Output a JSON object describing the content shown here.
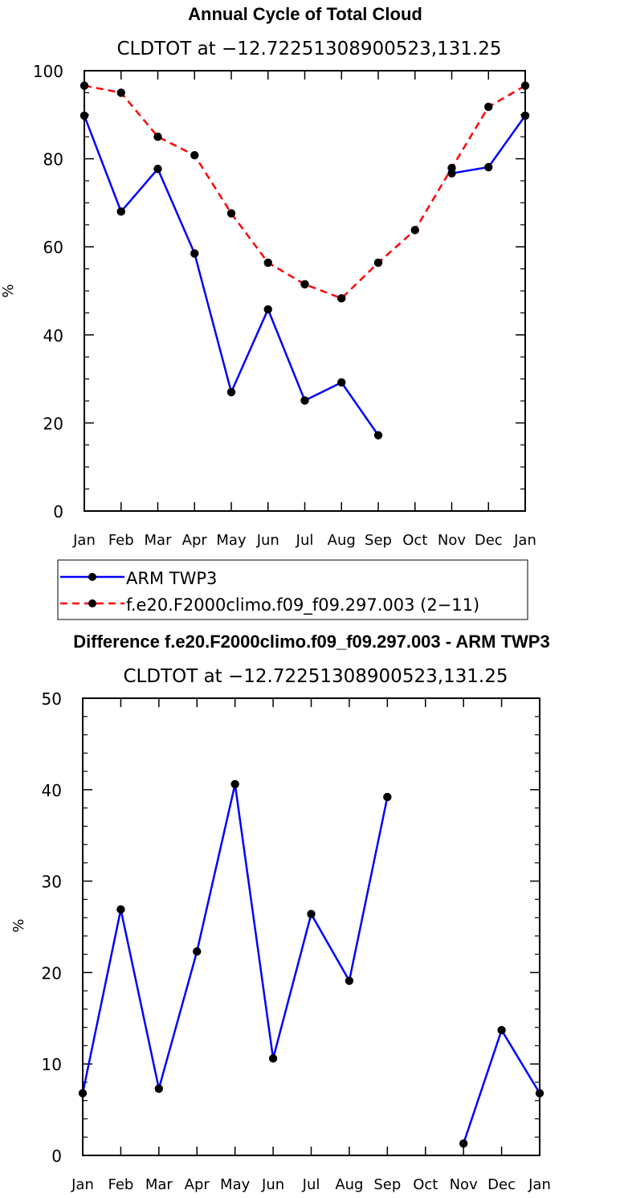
{
  "chart_data": [
    {
      "type": "line",
      "title": "Annual Cycle of Total Cloud",
      "subtitle": "CLDTOT at −12.72251308900523,131.25",
      "ylabel": "%",
      "xlabel": "",
      "categories": [
        "Jan",
        "Feb",
        "Mar",
        "Apr",
        "May",
        "Jun",
        "Jul",
        "Aug",
        "Sep",
        "Oct",
        "Nov",
        "Dec",
        "Jan"
      ],
      "ylim": [
        0,
        100
      ],
      "yticks": [
        0,
        20,
        40,
        60,
        80,
        100
      ],
      "grid": false,
      "legend_position": "below",
      "series": [
        {
          "name": "ARM TWP3",
          "color": "#0000ff",
          "dash": "solid",
          "values": [
            89.8,
            68.0,
            77.7,
            58.5,
            27.0,
            45.8,
            25.1,
            29.2,
            17.2,
            null,
            76.7,
            78.1,
            89.8
          ]
        },
        {
          "name": "f.e20.F2000climo.f09_f09.297.003 (2−11)",
          "color": "#ff0000",
          "dash": "dashed",
          "values": [
            96.6,
            95.0,
            85.0,
            80.8,
            67.6,
            56.4,
            51.5,
            48.3,
            56.4,
            63.8,
            77.9,
            91.8,
            96.6
          ]
        }
      ]
    },
    {
      "type": "line",
      "title": "Difference f.e20.F2000climo.f09_f09.297.003 - ARM TWP3",
      "subtitle": "CLDTOT at −12.72251308900523,131.25",
      "ylabel": "%",
      "xlabel": "",
      "categories": [
        "Jan",
        "Feb",
        "Mar",
        "Apr",
        "May",
        "Jun",
        "Jul",
        "Aug",
        "Sep",
        "Oct",
        "Nov",
        "Dec",
        "Jan"
      ],
      "ylim": [
        0,
        50
      ],
      "yticks": [
        0,
        10,
        20,
        30,
        40,
        50
      ],
      "grid": false,
      "series": [
        {
          "color": "#0000ff",
          "dash": "solid",
          "values": [
            6.8,
            26.9,
            7.3,
            22.3,
            40.6,
            10.6,
            26.4,
            19.1,
            39.2,
            null,
            1.3,
            13.7,
            6.8
          ]
        }
      ]
    }
  ]
}
